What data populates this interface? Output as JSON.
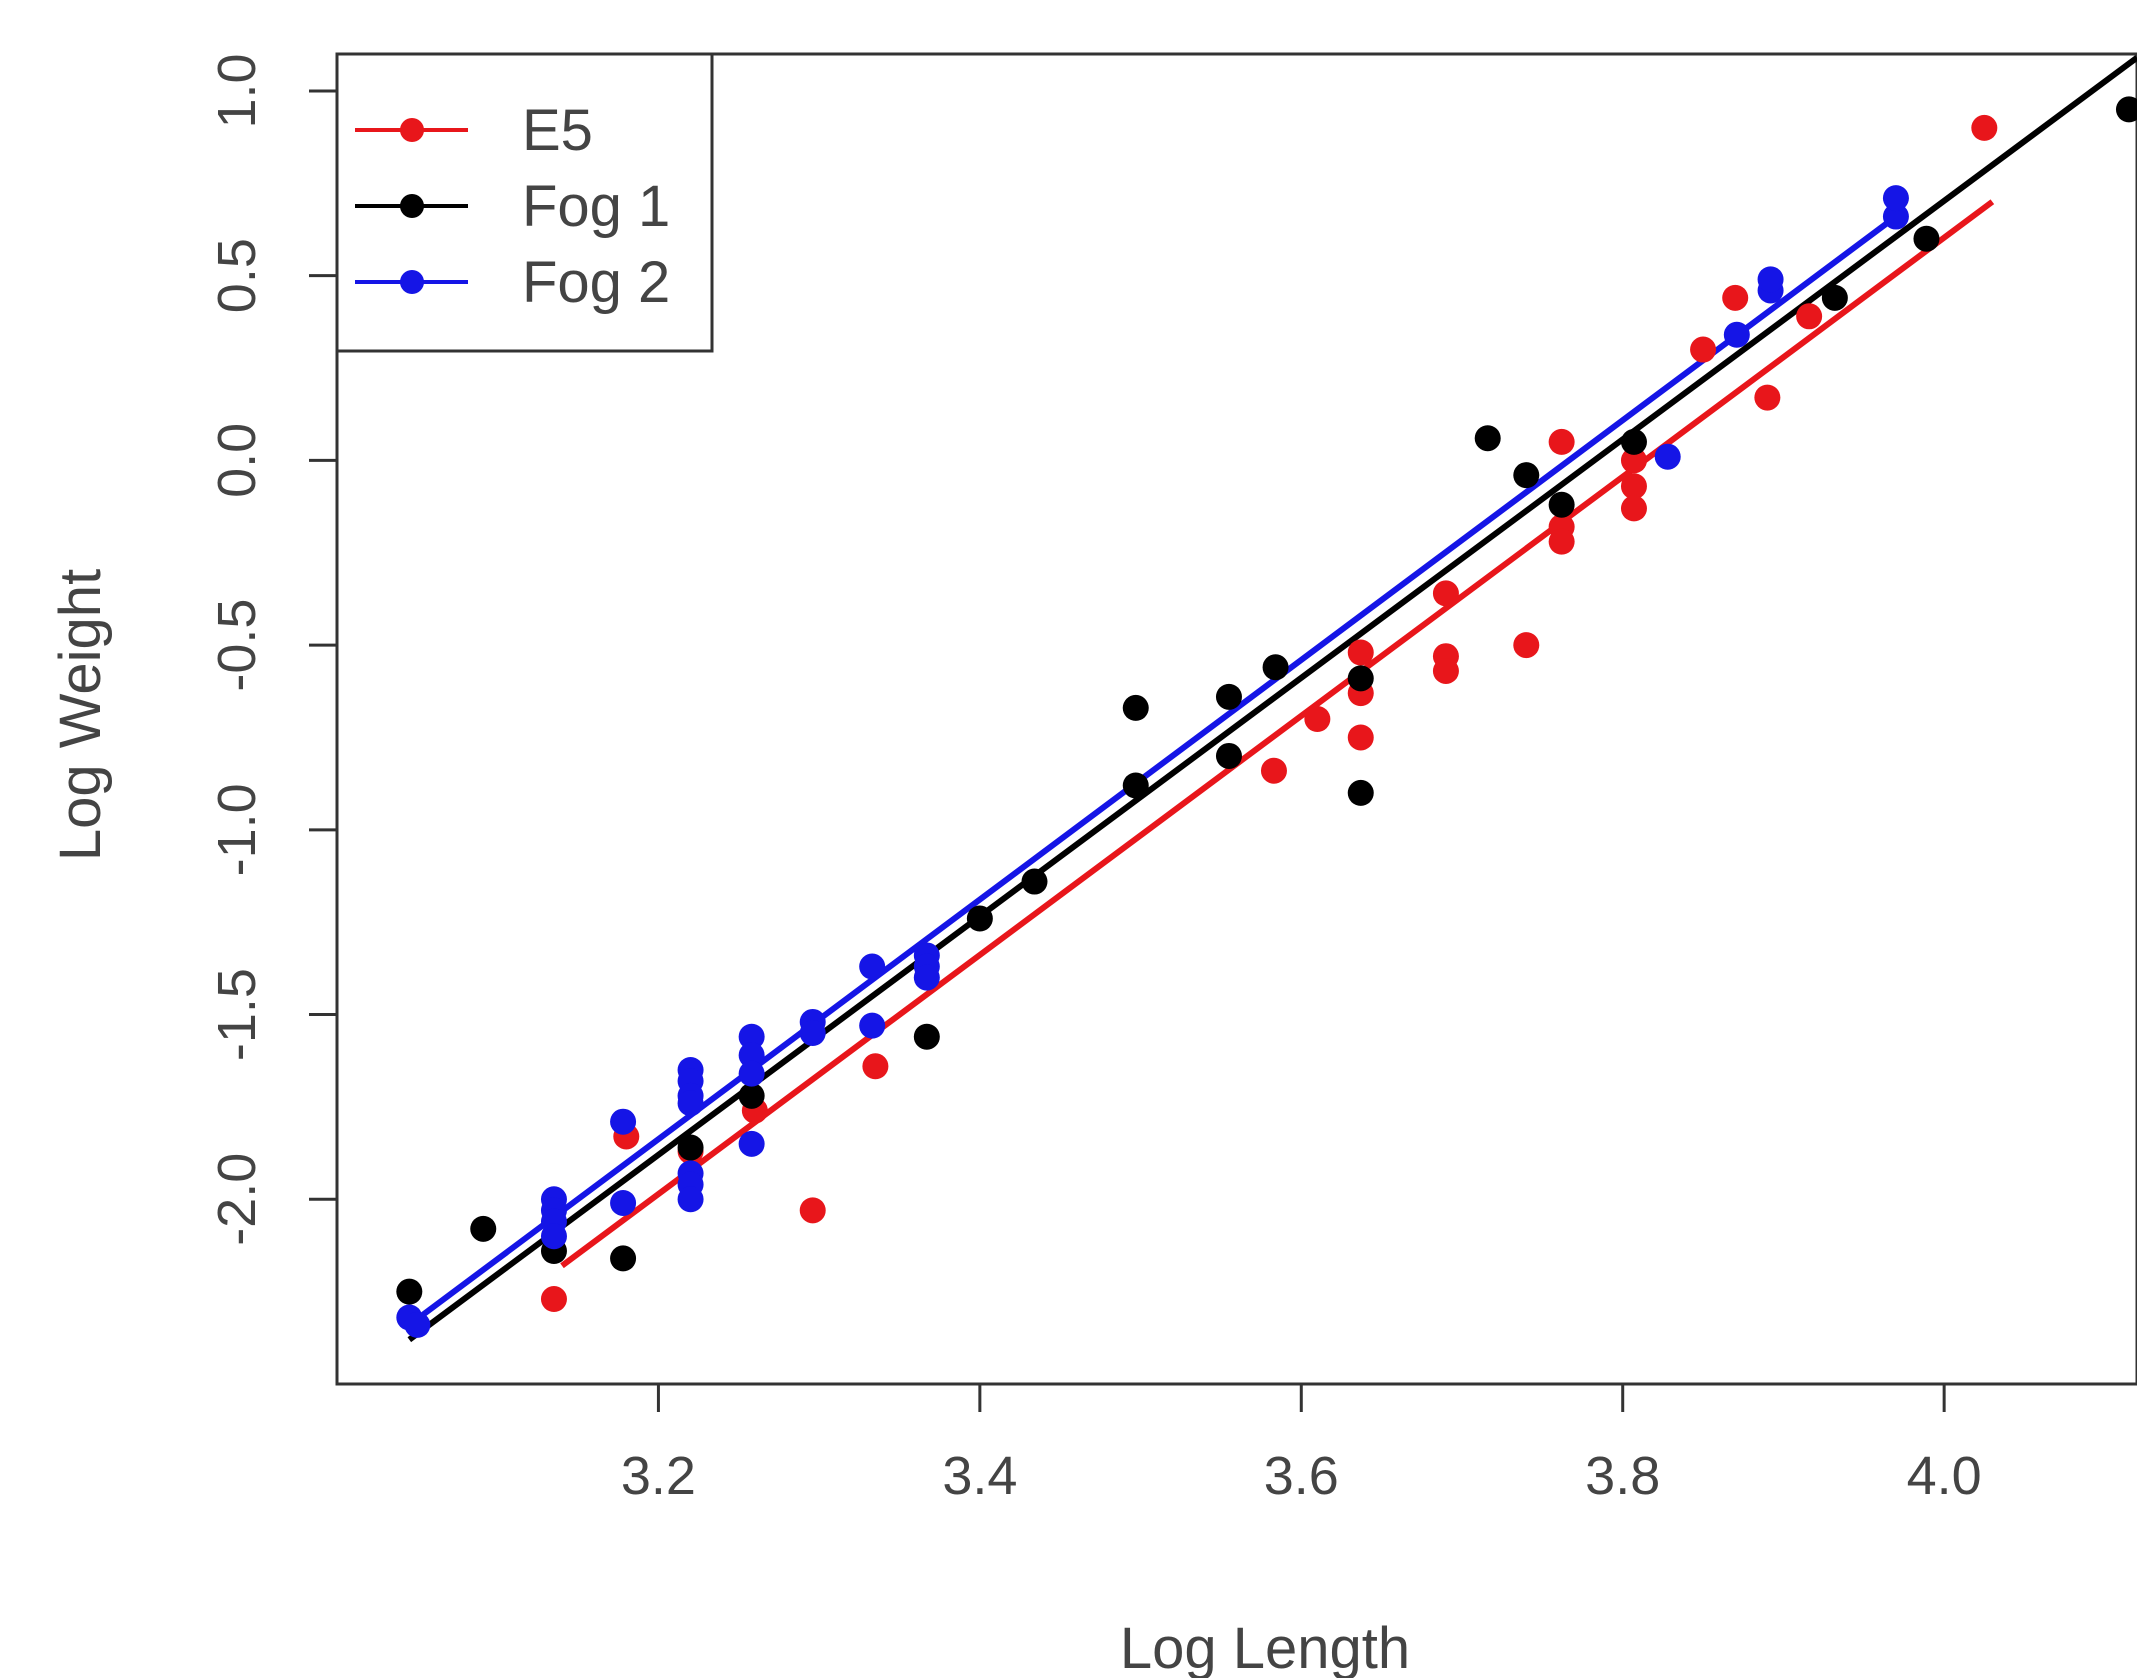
{
  "chart_data": {
    "type": "scatter",
    "title": "",
    "xlabel": "Log Length",
    "ylabel": "Log Weight",
    "xlim": [
      3.0,
      4.12
    ],
    "ylim": [
      -2.5,
      1.1
    ],
    "x_ticks": [
      "3.2",
      "3.4",
      "3.6",
      "3.8",
      "4.0"
    ],
    "y_ticks": [
      "-2.0",
      "-1.5",
      "-1.0",
      "-0.5",
      "0.0",
      "0.5",
      "1.0"
    ],
    "grid": false,
    "legend_position": "top-left",
    "series": [
      {
        "name": "E5",
        "color": "#e8161b",
        "fit": [
          [
            3.14,
            -2.18
          ],
          [
            4.03,
            0.7
          ]
        ],
        "points": [
          [
            3.135,
            -2.27
          ],
          [
            3.18,
            -1.83
          ],
          [
            3.22,
            -1.87
          ],
          [
            3.26,
            -1.76
          ],
          [
            3.296,
            -2.03
          ],
          [
            3.335,
            -1.64
          ],
          [
            3.583,
            -0.84
          ],
          [
            3.61,
            -0.7
          ],
          [
            3.637,
            -0.52
          ],
          [
            3.637,
            -0.63
          ],
          [
            3.637,
            -0.75
          ],
          [
            3.69,
            -0.36
          ],
          [
            3.69,
            -0.53
          ],
          [
            3.69,
            -0.57
          ],
          [
            3.74,
            -0.5
          ],
          [
            3.762,
            0.05
          ],
          [
            3.762,
            -0.18
          ],
          [
            3.762,
            -0.22
          ],
          [
            3.807,
            0.0
          ],
          [
            3.807,
            -0.07
          ],
          [
            3.807,
            -0.13
          ],
          [
            3.85,
            0.3
          ],
          [
            3.87,
            0.44
          ],
          [
            3.89,
            0.17
          ],
          [
            3.916,
            0.39
          ],
          [
            4.025,
            0.9
          ]
        ]
      },
      {
        "name": "Fog 1",
        "color": "#000000",
        "fit": [
          [
            3.045,
            -2.38
          ],
          [
            4.12,
            1.09
          ]
        ],
        "points": [
          [
            3.045,
            -2.25
          ],
          [
            3.091,
            -2.08
          ],
          [
            3.135,
            -2.14
          ],
          [
            3.178,
            -2.16
          ],
          [
            3.22,
            -1.86
          ],
          [
            3.258,
            -1.72
          ],
          [
            3.367,
            -1.56
          ],
          [
            3.4,
            -1.24
          ],
          [
            3.434,
            -1.14
          ],
          [
            3.497,
            -0.67
          ],
          [
            3.497,
            -0.88
          ],
          [
            3.555,
            -0.64
          ],
          [
            3.555,
            -0.8
          ],
          [
            3.584,
            -0.56
          ],
          [
            3.637,
            -0.59
          ],
          [
            3.637,
            -0.9
          ],
          [
            3.716,
            0.06
          ],
          [
            3.74,
            -0.04
          ],
          [
            3.762,
            -0.12
          ],
          [
            3.807,
            0.05
          ],
          [
            3.932,
            0.44
          ],
          [
            3.989,
            0.6
          ],
          [
            4.115,
            0.95
          ]
        ]
      },
      {
        "name": "Fog 2",
        "color": "#1515e6",
        "fit": [
          [
            3.045,
            -2.34
          ],
          [
            3.97,
            0.66
          ]
        ],
        "points": [
          [
            3.045,
            -2.32
          ],
          [
            3.05,
            -2.34
          ],
          [
            3.135,
            -2.0
          ],
          [
            3.135,
            -2.03
          ],
          [
            3.135,
            -2.06
          ],
          [
            3.135,
            -2.1
          ],
          [
            3.178,
            -1.79
          ],
          [
            3.178,
            -2.01
          ],
          [
            3.22,
            -1.65
          ],
          [
            3.22,
            -1.68
          ],
          [
            3.22,
            -1.72
          ],
          [
            3.22,
            -1.74
          ],
          [
            3.22,
            -1.93
          ],
          [
            3.22,
            -1.96
          ],
          [
            3.22,
            -2.0
          ],
          [
            3.258,
            -1.56
          ],
          [
            3.258,
            -1.61
          ],
          [
            3.258,
            -1.66
          ],
          [
            3.258,
            -1.85
          ],
          [
            3.296,
            -1.52
          ],
          [
            3.296,
            -1.55
          ],
          [
            3.333,
            -1.37
          ],
          [
            3.333,
            -1.53
          ],
          [
            3.367,
            -1.34
          ],
          [
            3.367,
            -1.37
          ],
          [
            3.367,
            -1.4
          ],
          [
            3.828,
            0.01
          ],
          [
            3.871,
            0.34
          ],
          [
            3.892,
            0.46
          ],
          [
            3.892,
            0.49
          ],
          [
            3.97,
            0.66
          ],
          [
            3.97,
            0.71
          ]
        ]
      }
    ]
  }
}
